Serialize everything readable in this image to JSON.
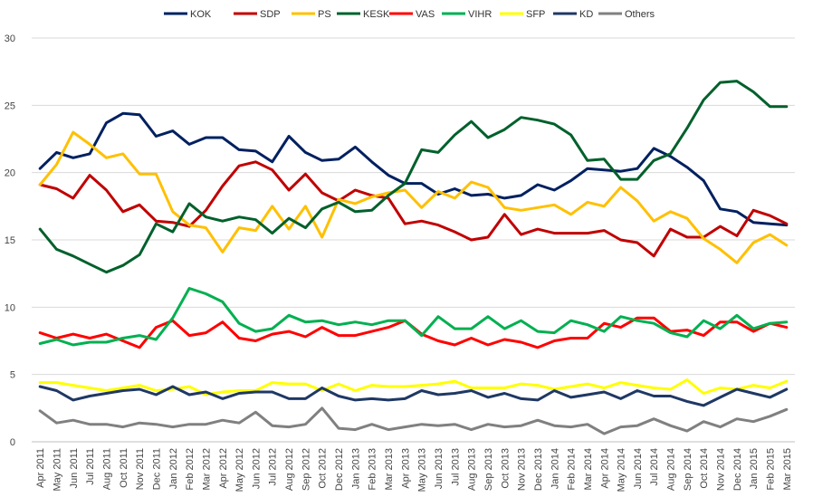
{
  "chart_data": {
    "type": "line",
    "title": "",
    "xlabel": "",
    "ylabel": "",
    "ylim": [
      0,
      30
    ],
    "yticks": [
      0,
      5,
      10,
      15,
      20,
      25,
      30
    ],
    "grid": true,
    "legend_position": "top",
    "categories": [
      "Apr 2011",
      "May 2011",
      "Jun 2011",
      "Jul 2011",
      "Aug 2011",
      "Oct 2011",
      "Nov 2011",
      "Dec 2011",
      "Jan 2012",
      "Feb 2012",
      "Mar 2012",
      "Apr 2012",
      "May 2012",
      "Jun 2012",
      "Jul 2012",
      "Aug 2012",
      "Sep 2012",
      "Oct 2012",
      "Dec 2012",
      "Jan 2013",
      "Feb 2013",
      "Mar 2013",
      "Apr 2013",
      "May 2013",
      "Jun 2013",
      "Jul 2013",
      "Aug 2013",
      "Sep 2013",
      "Oct 2013",
      "Nov 2013",
      "Dec 2013",
      "Jan 2014",
      "Feb 2014",
      "Mar 2014",
      "Apr 2014",
      "May 2014",
      "Jun 2014",
      "Jul 2014",
      "Aug 2014",
      "Sep 2014",
      "Oct 2014",
      "Nov 2014",
      "Dec 2014",
      "Jan 2015",
      "Feb 2015",
      "Mar 2015"
    ],
    "series": [
      {
        "name": "KOK",
        "color": "#002060",
        "values": [
          20.3,
          21.5,
          21.1,
          21.4,
          23.7,
          24.4,
          24.3,
          22.7,
          23.1,
          22.1,
          22.6,
          22.6,
          21.7,
          21.6,
          20.8,
          22.7,
          21.5,
          20.9,
          21.0,
          21.9,
          20.8,
          19.8,
          19.2,
          19.2,
          18.4,
          18.8,
          18.3,
          18.4,
          18.1,
          18.3,
          19.1,
          18.7,
          19.4,
          20.3,
          20.2,
          20.1,
          20.3,
          21.8,
          21.2,
          20.4,
          19.4,
          17.3,
          17.1,
          16.3,
          16.2,
          16.1
        ]
      },
      {
        "name": "SDP",
        "color": "#c00000",
        "values": [
          19.1,
          18.8,
          18.1,
          19.8,
          18.7,
          17.1,
          17.6,
          16.4,
          16.3,
          16.0,
          17.2,
          19.0,
          20.5,
          20.8,
          20.2,
          18.7,
          19.9,
          18.5,
          17.9,
          18.7,
          18.3,
          18.1,
          16.2,
          16.4,
          16.1,
          15.6,
          15.0,
          15.2,
          16.9,
          15.4,
          15.8,
          15.5,
          15.5,
          15.5,
          15.7,
          15.0,
          14.8,
          13.8,
          15.8,
          15.2,
          15.2,
          16.0,
          15.3,
          17.2,
          16.8,
          16.2
        ]
      },
      {
        "name": "PS",
        "color": "#ffc000",
        "values": [
          19.1,
          20.6,
          23.0,
          22.1,
          21.1,
          21.4,
          19.9,
          19.9,
          17.1,
          16.1,
          15.9,
          14.1,
          15.9,
          15.7,
          17.5,
          15.8,
          17.5,
          15.2,
          18.0,
          17.7,
          18.2,
          18.5,
          18.7,
          17.4,
          18.6,
          18.1,
          19.3,
          18.9,
          17.4,
          17.2,
          17.4,
          17.6,
          16.9,
          17.8,
          17.5,
          18.9,
          17.9,
          16.4,
          17.1,
          16.6,
          15.1,
          14.3,
          13.3,
          14.8,
          15.4,
          14.6
        ]
      },
      {
        "name": "KESK",
        "color": "#00602b",
        "values": [
          15.8,
          14.3,
          13.8,
          13.2,
          12.6,
          13.1,
          13.9,
          16.2,
          15.6,
          17.7,
          16.7,
          16.4,
          16.7,
          16.5,
          15.5,
          16.6,
          15.9,
          17.3,
          17.8,
          17.1,
          17.2,
          18.3,
          19.2,
          21.7,
          21.5,
          22.8,
          23.8,
          22.6,
          23.2,
          24.1,
          23.9,
          23.6,
          22.8,
          20.9,
          21.0,
          19.5,
          19.5,
          20.9,
          21.4,
          23.3,
          25.4,
          26.7,
          26.8,
          26.0,
          24.9,
          24.9
        ]
      },
      {
        "name": "VAS",
        "color": "#ff0000",
        "values": [
          8.1,
          7.7,
          8.0,
          7.7,
          8.0,
          7.5,
          7.0,
          8.5,
          9.0,
          7.9,
          8.1,
          8.9,
          7.7,
          7.5,
          8.0,
          8.2,
          7.8,
          8.5,
          7.9,
          7.9,
          8.2,
          8.5,
          9.0,
          8.0,
          7.5,
          7.2,
          7.7,
          7.2,
          7.6,
          7.4,
          7.0,
          7.5,
          7.7,
          7.7,
          8.8,
          8.5,
          9.2,
          9.2,
          8.2,
          8.3,
          7.9,
          8.9,
          8.9,
          8.2,
          8.8,
          8.5
        ]
      },
      {
        "name": "VIHR",
        "color": "#00b050",
        "values": [
          7.3,
          7.6,
          7.2,
          7.4,
          7.4,
          7.7,
          7.9,
          7.6,
          9.2,
          11.4,
          11.0,
          10.4,
          8.8,
          8.2,
          8.4,
          9.4,
          8.9,
          9.0,
          8.7,
          8.9,
          8.7,
          9.0,
          9.0,
          7.9,
          9.3,
          8.4,
          8.4,
          9.3,
          8.4,
          9.0,
          8.2,
          8.1,
          9.0,
          8.7,
          8.2,
          9.3,
          9.0,
          8.8,
          8.1,
          7.8,
          9.0,
          8.4,
          9.4,
          8.4,
          8.8,
          8.9
        ]
      },
      {
        "name": "SFP",
        "color": "#ffff00",
        "values": [
          4.4,
          4.4,
          4.2,
          4.0,
          3.8,
          4.0,
          4.2,
          3.8,
          3.9,
          4.1,
          3.5,
          3.7,
          3.8,
          3.8,
          4.4,
          4.3,
          4.3,
          3.8,
          4.3,
          3.8,
          4.2,
          4.1,
          4.1,
          4.2,
          4.3,
          4.5,
          4.0,
          4.0,
          4.0,
          4.3,
          4.2,
          3.9,
          4.1,
          4.3,
          4.0,
          4.4,
          4.2,
          4.0,
          3.9,
          4.6,
          3.6,
          4.0,
          3.9,
          4.2,
          4.0,
          4.5
        ]
      },
      {
        "name": "KD",
        "color": "#1f3864",
        "values": [
          4.1,
          3.8,
          3.1,
          3.4,
          3.6,
          3.8,
          3.9,
          3.5,
          4.1,
          3.5,
          3.7,
          3.2,
          3.6,
          3.7,
          3.7,
          3.2,
          3.2,
          4.0,
          3.4,
          3.1,
          3.2,
          3.1,
          3.2,
          3.8,
          3.5,
          3.6,
          3.8,
          3.3,
          3.6,
          3.2,
          3.1,
          3.8,
          3.3,
          3.5,
          3.7,
          3.2,
          3.8,
          3.4,
          3.4,
          3.0,
          2.7,
          3.3,
          3.9,
          3.6,
          3.3,
          3.9
        ]
      },
      {
        "name": "Others",
        "color": "#808080",
        "values": [
          2.3,
          1.4,
          1.6,
          1.3,
          1.3,
          1.1,
          1.4,
          1.3,
          1.1,
          1.3,
          1.3,
          1.6,
          1.4,
          2.2,
          1.2,
          1.1,
          1.3,
          2.5,
          1.0,
          0.9,
          1.3,
          0.9,
          1.1,
          1.3,
          1.2,
          1.3,
          0.9,
          1.3,
          1.1,
          1.2,
          1.6,
          1.2,
          1.1,
          1.3,
          0.6,
          1.1,
          1.2,
          1.7,
          1.2,
          0.8,
          1.5,
          1.1,
          1.7,
          1.5,
          1.9,
          2.4
        ]
      }
    ]
  }
}
